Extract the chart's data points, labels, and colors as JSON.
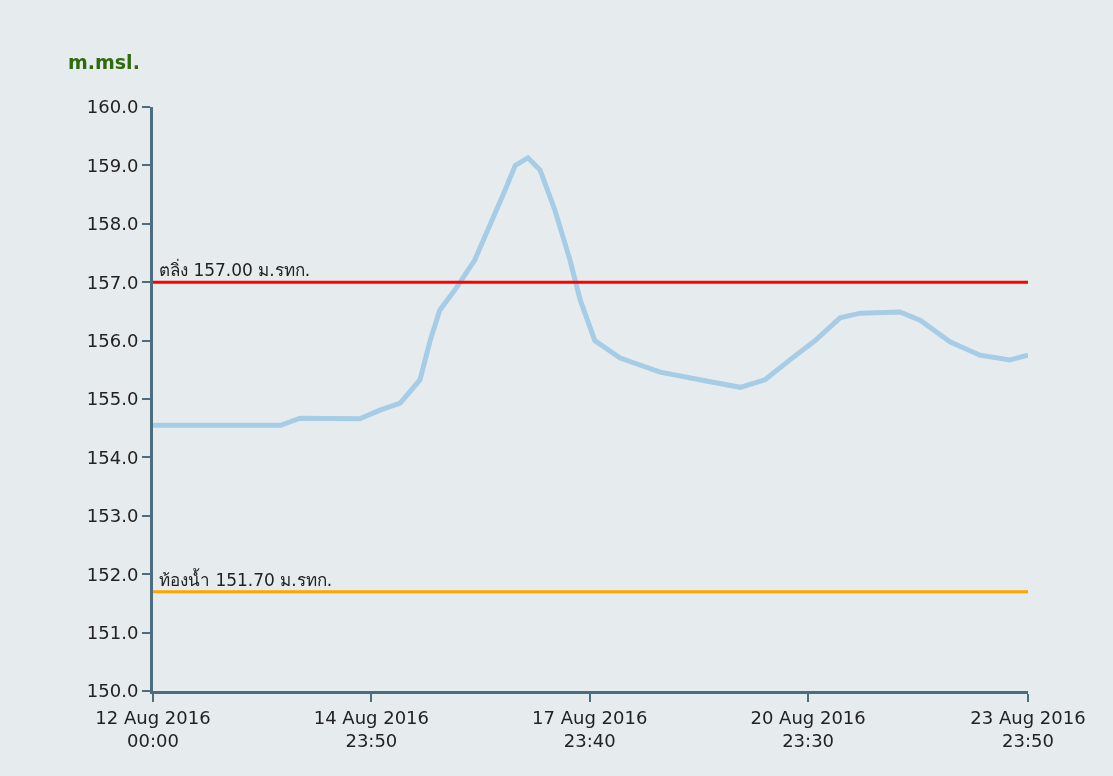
{
  "chart_data": {
    "type": "line",
    "ylabel": "m.msl.",
    "x": [
      "2016-08-12T00:00",
      "2016-08-13T18:00",
      "2016-08-14T00:20",
      "2016-08-14T20:00",
      "2016-08-15T02:40",
      "2016-08-15T09:20",
      "2016-08-15T15:50",
      "2016-08-15T19:10",
      "2016-08-15T22:20",
      "2016-08-16T03:20",
      "2016-08-16T09:50",
      "2016-08-16T14:50",
      "2016-08-16T19:50",
      "2016-08-16T23:10",
      "2016-08-17T03:20",
      "2016-08-17T07:20",
      "2016-08-17T12:10",
      "2016-08-17T17:10",
      "2016-08-17T20:30",
      "2016-08-18T01:20",
      "2016-08-18T09:40",
      "2016-08-18T22:50",
      "2016-08-19T11:50",
      "2016-08-20T01:10",
      "2016-08-20T09:20",
      "2016-08-20T17:30",
      "2016-08-21T01:50",
      "2016-08-21T10:00",
      "2016-08-21T16:40",
      "2016-08-22T05:40",
      "2016-08-22T12:20",
      "2016-08-22T22:10",
      "2016-08-23T08:00",
      "2016-08-23T17:50",
      "2016-08-23T23:50"
    ],
    "series": [
      {
        "color": "#a6cce6",
        "values": [
          154.55,
          154.55,
          154.67,
          154.66,
          154.81,
          154.93,
          155.33,
          156.0,
          156.52,
          156.87,
          157.38,
          157.98,
          158.58,
          159.0,
          159.13,
          158.92,
          158.24,
          157.38,
          156.7,
          156.0,
          155.7,
          155.46,
          155.33,
          155.2,
          155.33,
          155.67,
          156.0,
          156.39,
          156.47,
          156.49,
          156.35,
          155.98,
          155.75,
          155.67,
          155.75
        ]
      }
    ],
    "xlim": [
      "2016-08-12T00:00",
      "2016-08-23T23:50"
    ],
    "xticks": [
      {
        "value": "2016-08-12T00:00",
        "label": "12 Aug 2016\n00:00"
      },
      {
        "value": "2016-08-14T23:50",
        "label": "14 Aug 2016\n23:50"
      },
      {
        "value": "2016-08-17T23:40",
        "label": "17 Aug 2016\n23:40"
      },
      {
        "value": "2016-08-20T23:30",
        "label": "20 Aug 2016\n23:30"
      },
      {
        "value": "2016-08-23T23:50",
        "label": "23 Aug 2016\n23:50"
      }
    ],
    "ylim": [
      150,
      160
    ],
    "yticks": [
      {
        "value": 150,
        "label": "150.0"
      },
      {
        "value": 151,
        "label": "151.0"
      },
      {
        "value": 152,
        "label": "152.0"
      },
      {
        "value": 153,
        "label": "153.0"
      },
      {
        "value": 154,
        "label": "154.0"
      },
      {
        "value": 155,
        "label": "155.0"
      },
      {
        "value": 156,
        "label": "156.0"
      },
      {
        "value": 157,
        "label": "157.0"
      },
      {
        "value": 158,
        "label": "158.0"
      },
      {
        "value": 159,
        "label": "159.0"
      },
      {
        "value": 160,
        "label": "160.0"
      }
    ],
    "ref_lines": [
      {
        "axis": "y",
        "value": 157,
        "label": "ตลิ่ง 157.00 ม.รทก.",
        "color": "#ff0000"
      },
      {
        "axis": "y",
        "value": 151.7,
        "label": "ท้องน้ำ 151.70 ม.รทก.",
        "color": "#ffa500"
      }
    ],
    "grid": false,
    "marker": "none",
    "line_style": "solid"
  }
}
